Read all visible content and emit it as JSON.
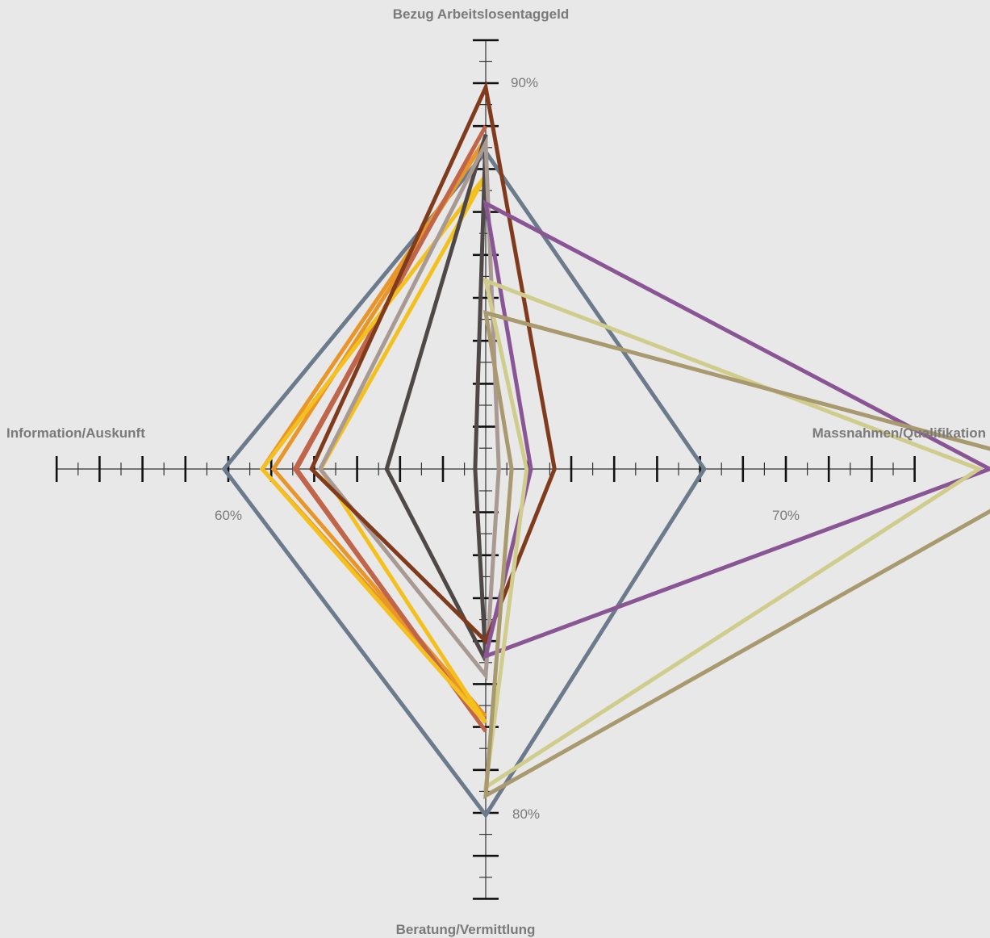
{
  "chart_data": {
    "type": "radar",
    "axes": [
      {
        "name": "Bezug Arbeitslosentaggeld",
        "direction": "top",
        "tick_label": "90%",
        "tick_value": 90
      },
      {
        "name": "Massnahmen/Qualifikation",
        "direction": "right",
        "tick_label": "70%",
        "tick_value": 70
      },
      {
        "name": "Beratung/Vermittlung",
        "direction": "bottom",
        "tick_label": "80%",
        "tick_value": 80
      },
      {
        "name": "Information/Auskunft",
        "direction": "left",
        "tick_label": "60%",
        "tick_value": 60
      }
    ],
    "grid": false,
    "legend": "none",
    "series": [
      {
        "color": "#6b7b8c",
        "values": [
          86.8,
          66.2,
          80.1,
          60.2
        ]
      },
      {
        "color": "#e8962a",
        "values": [
          87.4,
          45.6,
          75.5,
          57.9
        ]
      },
      {
        "color": "#c0654a",
        "values": [
          88.0,
          47.2,
          76.2,
          56.9
        ]
      },
      {
        "color": "#f4c01e",
        "values": [
          85.7,
          45.6,
          75.8,
          55.7
        ]
      },
      {
        "color": "#4e4846",
        "values": [
          87.6,
          51.4,
          72.9,
          48.5
        ]
      },
      {
        "color": "#a89a92",
        "values": [
          87.2,
          48.3,
          73.6,
          47.4
        ]
      },
      {
        "color": "#7f3b1c",
        "values": [
          89.8,
          47.9,
          72.0,
          44.8
        ]
      },
      {
        "color": "#8a5595",
        "values": [
          84.4,
          79.5,
          72.7,
          45.9
        ]
      },
      {
        "color": "#cfcc8c",
        "values": [
          80.8,
          79.0,
          78.8,
          46.1
        ]
      },
      {
        "color": "#a89a6e",
        "values": [
          79.3,
          83.0,
          79.2,
          46.8
        ]
      }
    ]
  }
}
